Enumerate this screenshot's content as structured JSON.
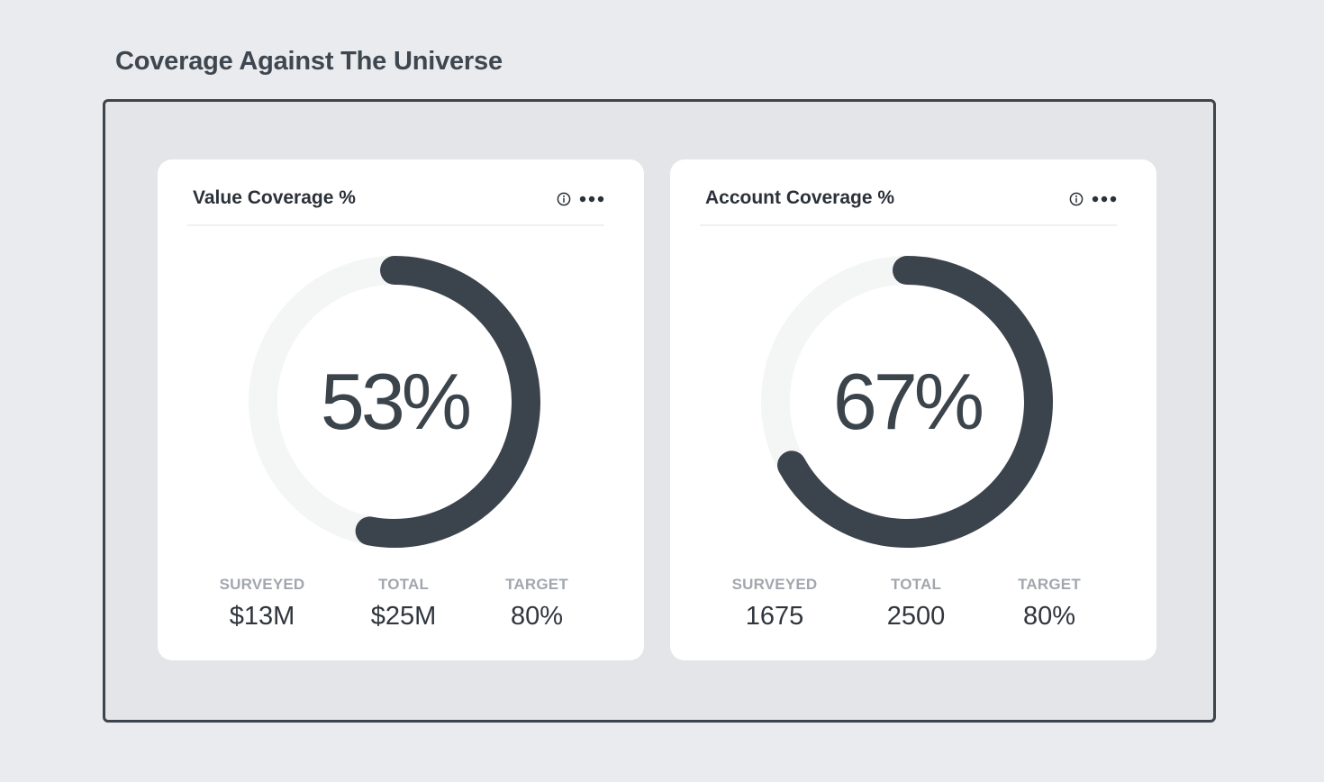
{
  "page": {
    "title": "Coverage Against The Universe"
  },
  "colors": {
    "background": "#e9ebee",
    "arc": "#3b434c",
    "track": "#f4f6f6"
  },
  "cards": [
    {
      "title": "Value Coverage %",
      "value_label": "53%",
      "percent": 53,
      "info_icon": "info-icon",
      "more_icon": "more-options-icon",
      "stats": [
        {
          "label": "SURVEYED",
          "value": "$13M"
        },
        {
          "label": "TOTAL",
          "value": "$25M"
        },
        {
          "label": "TARGET",
          "value": "80%"
        }
      ]
    },
    {
      "title": "Account Coverage %",
      "value_label": "67%",
      "percent": 67,
      "info_icon": "info-icon",
      "more_icon": "more-options-icon",
      "stats": [
        {
          "label": "SURVEYED",
          "value": "1675"
        },
        {
          "label": "TOTAL",
          "value": "2500"
        },
        {
          "label": "TARGET",
          "value": "80%"
        }
      ]
    }
  ]
}
